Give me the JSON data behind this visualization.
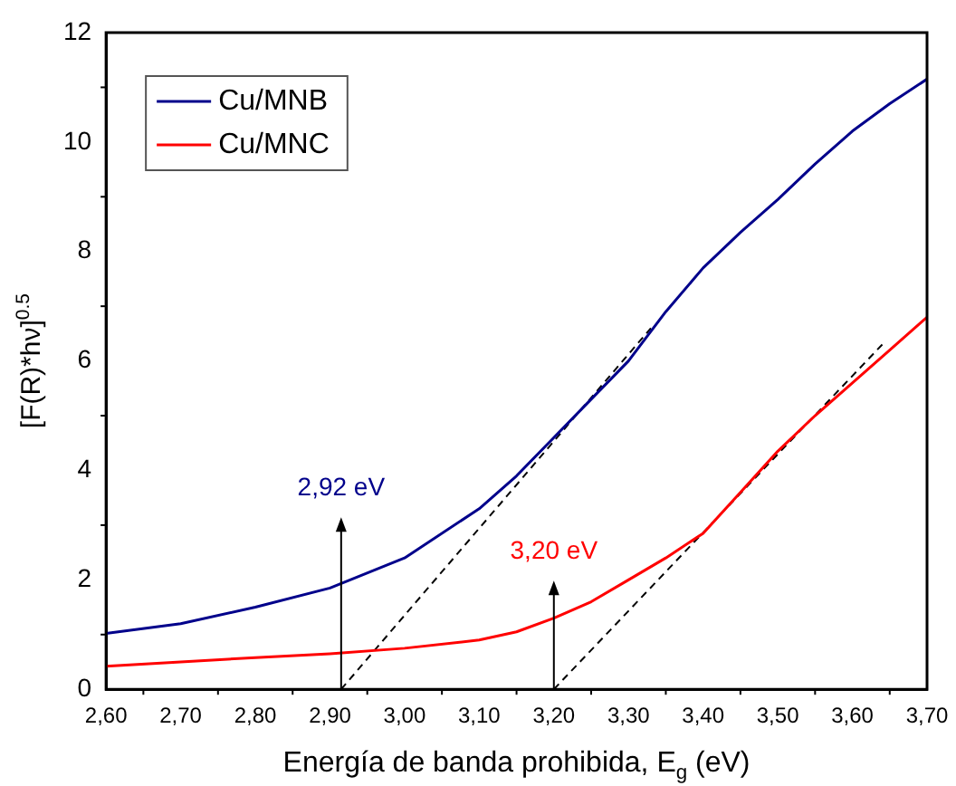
{
  "chart_data": {
    "type": "line",
    "xlabel": "Energía de banda prohibida, E$_{g}$ (eV)",
    "ylabel": "[F(R)*hν]$^{0.5}$",
    "x": [
      2.6,
      2.7,
      2.8,
      2.9,
      3.0,
      3.1,
      3.15,
      3.2,
      3.25,
      3.3,
      3.35,
      3.4,
      3.45,
      3.5,
      3.55,
      3.6,
      3.65,
      3.7
    ],
    "series": [
      {
        "name": "Cu/MNB",
        "color": "#00008b",
        "values": [
          1.02,
          1.2,
          1.5,
          1.85,
          2.4,
          3.3,
          3.9,
          4.6,
          5.3,
          6.0,
          6.9,
          7.7,
          8.35,
          8.95,
          9.6,
          10.2,
          10.7,
          11.15
        ]
      },
      {
        "name": "Cu/MNC",
        "color": "#ff0000",
        "values": [
          0.42,
          0.5,
          0.58,
          0.65,
          0.75,
          0.9,
          1.05,
          1.3,
          1.6,
          2.0,
          2.4,
          2.85,
          3.6,
          4.35,
          5.0,
          5.6,
          6.2,
          6.8
        ]
      },
      {
        "color": "#000000",
        "line_style": "dashed",
        "x": [
          2.915,
          3.33
        ],
        "values": [
          0,
          6.6
        ]
      },
      {
        "color": "#000000",
        "line_style": "dashed",
        "x": [
          3.2,
          3.64
        ],
        "values": [
          0,
          6.3
        ]
      }
    ],
    "annotations": [
      {
        "text": "2,92 eV",
        "x": 2.915,
        "y": 0
      },
      {
        "text": "3,20 eV",
        "x": 3.2,
        "y": 0
      }
    ],
    "xlim": [
      2.6,
      3.7
    ],
    "xticks": [
      {
        "value": 2.6,
        "label": "2,60"
      },
      {
        "value": 2.7,
        "label": "2,70"
      },
      {
        "value": 2.8,
        "label": "2,80"
      },
      {
        "value": 2.9,
        "label": "2,90"
      },
      {
        "value": 3.0,
        "label": "3,00"
      },
      {
        "value": 3.1,
        "label": "3,10"
      },
      {
        "value": 3.2,
        "label": "3,20"
      },
      {
        "value": 3.3,
        "label": "3,30"
      },
      {
        "value": 3.4,
        "label": "3,40"
      },
      {
        "value": 3.5,
        "label": "3,50"
      },
      {
        "value": 3.6,
        "label": "3,60"
      },
      {
        "value": 3.7,
        "label": "3,70"
      }
    ],
    "ylim": [
      0,
      12
    ],
    "yticks": [
      0,
      2,
      4,
      6,
      8,
      10,
      12
    ],
    "grid": false,
    "legend": "top left",
    "marker": "none",
    "line_style": "solid"
  }
}
